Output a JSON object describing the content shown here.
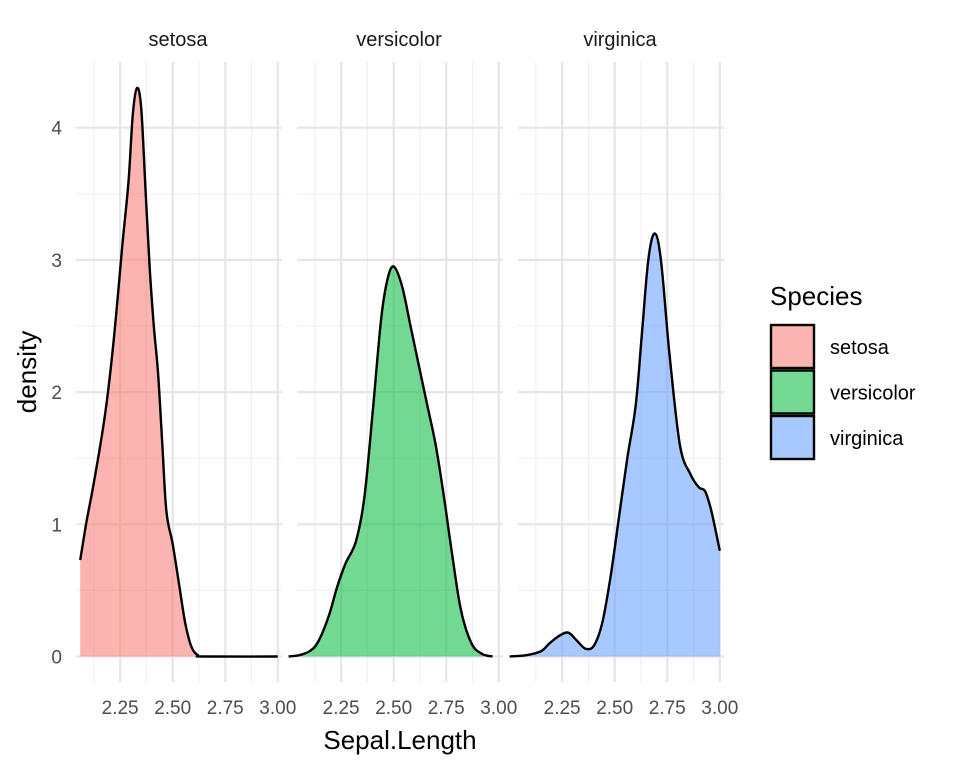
{
  "chart_data": {
    "type": "area",
    "xlabel": "Sepal.Length",
    "ylabel": "density",
    "ylim": [
      0,
      4.35
    ],
    "y_ticks": [
      "0",
      "1",
      "2",
      "3",
      "4"
    ],
    "grid": true,
    "legend_title": "Species",
    "legend_position": "right",
    "panels": [
      {
        "name": "setosa",
        "color": "#F8766D",
        "xlim": [
          2.04,
          3.02
        ],
        "x_ticks": [
          "2.25",
          "2.50",
          "2.75",
          "3.00"
        ],
        "points": [
          [
            2.06,
            0.73
          ],
          [
            2.09,
            1.02
          ],
          [
            2.13,
            1.36
          ],
          [
            2.18,
            1.85
          ],
          [
            2.22,
            2.4
          ],
          [
            2.26,
            3.1
          ],
          [
            2.29,
            3.6
          ],
          [
            2.31,
            4.1
          ],
          [
            2.33,
            4.3
          ],
          [
            2.35,
            4.15
          ],
          [
            2.37,
            3.55
          ],
          [
            2.39,
            2.95
          ],
          [
            2.41,
            2.5
          ],
          [
            2.43,
            2.15
          ],
          [
            2.45,
            1.62
          ],
          [
            2.47,
            1.1
          ],
          [
            2.5,
            0.85
          ],
          [
            2.53,
            0.55
          ],
          [
            2.56,
            0.25
          ],
          [
            2.59,
            0.07
          ],
          [
            2.62,
            0.01
          ],
          [
            2.65,
            0.0
          ],
          [
            3.0,
            0.0
          ]
        ]
      },
      {
        "name": "versicolor",
        "color": "#00BA38",
        "xlim": [
          2.04,
          3.02
        ],
        "x_ticks": [
          "2.25",
          "2.50",
          "2.75",
          "3.00"
        ],
        "points": [
          [
            2.0,
            0.0
          ],
          [
            2.05,
            0.01
          ],
          [
            2.1,
            0.04
          ],
          [
            2.14,
            0.11
          ],
          [
            2.19,
            0.3
          ],
          [
            2.23,
            0.52
          ],
          [
            2.27,
            0.7
          ],
          [
            2.32,
            0.87
          ],
          [
            2.36,
            1.2
          ],
          [
            2.4,
            1.85
          ],
          [
            2.44,
            2.55
          ],
          [
            2.47,
            2.85
          ],
          [
            2.5,
            2.95
          ],
          [
            2.54,
            2.8
          ],
          [
            2.58,
            2.5
          ],
          [
            2.62,
            2.2
          ],
          [
            2.66,
            1.9
          ],
          [
            2.7,
            1.6
          ],
          [
            2.74,
            1.2
          ],
          [
            2.78,
            0.75
          ],
          [
            2.82,
            0.35
          ],
          [
            2.87,
            0.1
          ],
          [
            2.92,
            0.02
          ],
          [
            2.97,
            0.0
          ]
        ]
      },
      {
        "name": "virginica",
        "color": "#619CFF",
        "xlim": [
          2.04,
          3.02
        ],
        "x_ticks": [
          "2.25",
          "2.50",
          "2.75",
          "3.00"
        ],
        "points": [
          [
            2.0,
            0.0
          ],
          [
            2.08,
            0.01
          ],
          [
            2.15,
            0.04
          ],
          [
            2.19,
            0.1
          ],
          [
            2.24,
            0.16
          ],
          [
            2.28,
            0.18
          ],
          [
            2.32,
            0.12
          ],
          [
            2.36,
            0.06
          ],
          [
            2.4,
            0.08
          ],
          [
            2.44,
            0.25
          ],
          [
            2.48,
            0.6
          ],
          [
            2.52,
            1.05
          ],
          [
            2.56,
            1.5
          ],
          [
            2.6,
            1.9
          ],
          [
            2.63,
            2.45
          ],
          [
            2.66,
            3.0
          ],
          [
            2.69,
            3.2
          ],
          [
            2.72,
            3.0
          ],
          [
            2.76,
            2.3
          ],
          [
            2.81,
            1.6
          ],
          [
            2.86,
            1.38
          ],
          [
            2.9,
            1.28
          ],
          [
            2.93,
            1.25
          ],
          [
            2.96,
            1.1
          ],
          [
            3.0,
            0.8
          ]
        ]
      }
    ]
  }
}
